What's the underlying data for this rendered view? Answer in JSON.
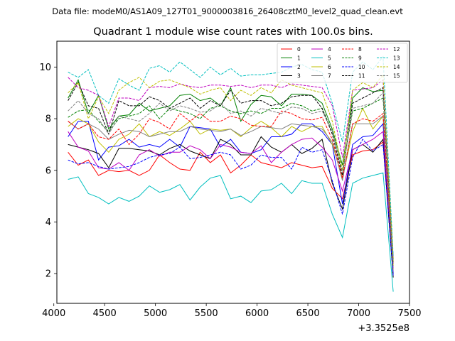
{
  "chart_data": {
    "type": "line",
    "suptitle": "Data file: modeM0/AS1A09_127T01_9000003816_26408cztM0_level2_quad_clean.evt",
    "title": "Quadrant 1 module wise count rates with 100.0s bins.",
    "xlabel": "",
    "ylabel": "",
    "x_offset_label": "+3.3525e8",
    "xlim": [
      4030,
      7500
    ],
    "ylim": [
      0.85,
      11.0
    ],
    "x_ticks": [
      4000,
      4500,
      5000,
      5500,
      6000,
      6500,
      7000,
      7500
    ],
    "y_ticks": [
      2,
      4,
      6,
      8,
      10
    ],
    "legend_position": "top-right",
    "x": [
      4140,
      4240,
      4340,
      4440,
      4540,
      4640,
      4740,
      4840,
      4940,
      5040,
      5140,
      5240,
      5340,
      5440,
      5540,
      5640,
      5740,
      5840,
      5940,
      6040,
      6140,
      6240,
      6340,
      6440,
      6540,
      6640,
      6740,
      6840,
      6940,
      7040,
      7140,
      7240,
      7340
    ],
    "series": [
      {
        "name": "0",
        "color": "#ff0000",
        "dash": "solid",
        "values": [
          6.7,
          6.2,
          6.4,
          5.8,
          6.0,
          5.95,
          6.0,
          5.8,
          6.0,
          6.6,
          6.3,
          6.05,
          6.0,
          6.7,
          6.3,
          6.6,
          5.9,
          6.2,
          6.6,
          6.3,
          6.2,
          6.1,
          6.3,
          6.2,
          6.1,
          6.15,
          5.3,
          4.9,
          6.6,
          6.75,
          6.8,
          7.1,
          1.9
        ]
      },
      {
        "name": "1",
        "color": "#008000",
        "dash": "solid",
        "values": [
          8.8,
          9.5,
          8.2,
          8.9,
          7.6,
          8.1,
          8.15,
          8.6,
          8.3,
          8.4,
          8.5,
          8.9,
          8.95,
          8.7,
          8.8,
          8.5,
          9.2,
          7.9,
          8.55,
          8.9,
          8.85,
          8.5,
          8.95,
          8.95,
          8.9,
          8.6,
          7.6,
          6.2,
          8.8,
          9.2,
          9.05,
          9.1,
          2.6
        ]
      },
      {
        "name": "2",
        "color": "#0000ff",
        "dash": "solid",
        "values": [
          7.3,
          7.9,
          7.9,
          6.4,
          6.9,
          6.95,
          7.2,
          6.9,
          7.0,
          6.9,
          7.2,
          6.9,
          7.7,
          7.65,
          7.6,
          6.9,
          7.2,
          6.7,
          6.65,
          6.8,
          7.3,
          7.3,
          7.4,
          7.8,
          7.8,
          7.5,
          7.0,
          4.7,
          7.0,
          7.3,
          7.35,
          7.8,
          2.0
        ]
      },
      {
        "name": "3",
        "color": "#000000",
        "dash": "solid",
        "values": [
          7.0,
          6.9,
          6.8,
          6.65,
          6.1,
          6.85,
          6.85,
          6.8,
          6.75,
          6.6,
          6.85,
          7.0,
          6.75,
          6.6,
          6.45,
          7.2,
          7.0,
          6.6,
          6.6,
          7.3,
          6.9,
          6.7,
          7.0,
          6.65,
          6.85,
          7.2,
          5.5,
          4.5,
          6.8,
          7.0,
          6.7,
          7.2,
          1.85
        ]
      },
      {
        "name": "4",
        "color": "#bf00bf",
        "dash": "solid",
        "values": [
          7.5,
          6.9,
          6.75,
          6.1,
          6.05,
          6.3,
          6.0,
          6.6,
          6.8,
          6.55,
          6.7,
          6.7,
          6.95,
          6.8,
          6.45,
          7.0,
          6.9,
          6.7,
          6.65,
          6.95,
          6.3,
          6.7,
          7.0,
          7.2,
          7.25,
          6.9,
          6.4,
          5.2,
          6.8,
          7.0,
          7.2,
          7.5,
          2.2
        ]
      },
      {
        "name": "5",
        "color": "#00bfbf",
        "dash": "solid",
        "values": [
          5.65,
          5.75,
          5.1,
          4.95,
          4.7,
          4.95,
          4.8,
          5.0,
          5.4,
          5.15,
          5.25,
          5.45,
          4.85,
          5.35,
          5.7,
          5.8,
          4.9,
          5.0,
          4.75,
          5.2,
          5.25,
          5.5,
          5.1,
          5.6,
          5.5,
          5.5,
          4.3,
          3.4,
          5.5,
          5.7,
          5.8,
          5.9,
          1.3
        ]
      },
      {
        "name": "6",
        "color": "#bfbf00",
        "dash": "solid",
        "values": [
          7.7,
          8.0,
          7.8,
          7.1,
          6.7,
          7.2,
          7.4,
          7.8,
          7.3,
          7.5,
          7.35,
          7.6,
          7.9,
          7.4,
          7.6,
          7.55,
          7.6,
          7.3,
          7.65,
          7.9,
          7.65,
          7.3,
          7.7,
          7.5,
          7.7,
          7.7,
          7.0,
          5.7,
          7.5,
          8.4,
          7.6,
          8.1,
          2.3
        ]
      },
      {
        "name": "7",
        "color": "#808080",
        "dash": "solid",
        "values": [
          7.9,
          7.6,
          7.8,
          7.6,
          7.2,
          7.4,
          7.55,
          7.5,
          7.3,
          7.4,
          7.5,
          7.5,
          7.7,
          7.6,
          7.55,
          7.5,
          7.6,
          7.35,
          7.5,
          7.7,
          7.65,
          7.6,
          7.8,
          7.75,
          7.7,
          7.6,
          7.1,
          5.6,
          7.8,
          7.8,
          7.8,
          8.1,
          2.1
        ]
      },
      {
        "name": "8",
        "color": "#ff0000",
        "dash": "dashed",
        "values": [
          7.9,
          7.6,
          7.8,
          7.3,
          7.2,
          7.6,
          7.0,
          7.4,
          8.0,
          7.85,
          7.6,
          8.2,
          7.9,
          8.2,
          7.9,
          7.9,
          8.1,
          8.0,
          7.75,
          7.7,
          7.7,
          8.3,
          8.2,
          8.0,
          7.95,
          8.05,
          7.2,
          5.7,
          7.8,
          8.0,
          7.9,
          8.2,
          2.4
        ]
      },
      {
        "name": "9",
        "color": "#008000",
        "dash": "dashed",
        "values": [
          8.05,
          8.3,
          8.35,
          7.9,
          7.5,
          8.0,
          8.1,
          8.2,
          8.5,
          8.0,
          8.4,
          8.3,
          8.2,
          8.0,
          8.4,
          8.5,
          8.3,
          8.2,
          8.3,
          8.2,
          8.4,
          8.4,
          8.6,
          8.5,
          8.3,
          8.4,
          7.5,
          6.0,
          8.3,
          8.4,
          8.6,
          8.8,
          2.5
        ]
      },
      {
        "name": "10",
        "color": "#0000ff",
        "dash": "dashed",
        "values": [
          6.4,
          6.25,
          6.3,
          6.15,
          6.05,
          6.1,
          6.15,
          6.3,
          6.5,
          6.6,
          6.65,
          6.9,
          6.45,
          6.5,
          6.6,
          6.7,
          6.6,
          6.05,
          6.2,
          6.6,
          6.5,
          6.5,
          6.05,
          6.9,
          6.7,
          6.8,
          5.6,
          4.3,
          6.5,
          7.2,
          6.75,
          7.0,
          1.9
        ]
      },
      {
        "name": "11",
        "color": "#000000",
        "dash": "dashed",
        "values": [
          8.7,
          9.4,
          8.5,
          8.4,
          7.4,
          8.7,
          8.5,
          8.5,
          8.85,
          8.7,
          8.4,
          8.6,
          8.8,
          8.4,
          8.7,
          8.5,
          9.1,
          8.6,
          8.7,
          8.7,
          8.5,
          8.6,
          8.85,
          8.9,
          8.9,
          8.4,
          7.4,
          5.8,
          8.6,
          8.8,
          9.0,
          9.2,
          2.4
        ]
      },
      {
        "name": "12",
        "color": "#bf00bf",
        "dash": "dashed",
        "values": [
          9.6,
          9.2,
          9.1,
          8.9,
          7.7,
          8.8,
          8.8,
          8.7,
          9.2,
          9.25,
          9.2,
          9.35,
          9.25,
          9.2,
          9.3,
          9.3,
          9.25,
          9.3,
          9.2,
          9.3,
          9.3,
          9.2,
          9.35,
          9.3,
          9.25,
          9.2,
          8.5,
          6.5,
          9.1,
          9.15,
          9.2,
          9.5,
          2.6
        ]
      },
      {
        "name": "13",
        "color": "#00bfbf",
        "dash": "dashed",
        "values": [
          9.8,
          9.6,
          9.9,
          8.9,
          8.6,
          9.55,
          9.3,
          9.1,
          9.95,
          10.05,
          9.8,
          10.2,
          9.9,
          9.6,
          10.0,
          9.7,
          9.95,
          9.65,
          9.7,
          9.7,
          9.75,
          9.8,
          10.0,
          10.1,
          9.9,
          9.8,
          8.6,
          7.1,
          9.8,
          10.2,
          9.9,
          10.4,
          2.7
        ]
      },
      {
        "name": "14",
        "color": "#bfbf00",
        "dash": "dashed",
        "values": [
          9.0,
          9.4,
          8.0,
          8.85,
          8.2,
          9.1,
          9.4,
          9.6,
          9.2,
          9.45,
          9.5,
          9.35,
          9.2,
          8.95,
          9.1,
          9.2,
          8.7,
          9.1,
          8.9,
          9.2,
          9.0,
          9.5,
          9.3,
          9.2,
          9.1,
          9.0,
          7.9,
          6.0,
          9.1,
          9.4,
          9.2,
          9.7,
          2.5
        ]
      },
      {
        "name": "15",
        "color": "#808080",
        "dash": "dashed",
        "values": [
          8.3,
          8.7,
          8.2,
          8.0,
          7.4,
          8.1,
          8.0,
          7.9,
          8.2,
          8.6,
          8.3,
          8.5,
          8.4,
          8.25,
          8.3,
          8.6,
          8.2,
          8.3,
          8.1,
          8.4,
          8.3,
          8.2,
          8.45,
          8.4,
          8.2,
          8.3,
          7.5,
          5.9,
          8.4,
          8.5,
          8.6,
          9.0,
          2.3
        ]
      }
    ]
  }
}
